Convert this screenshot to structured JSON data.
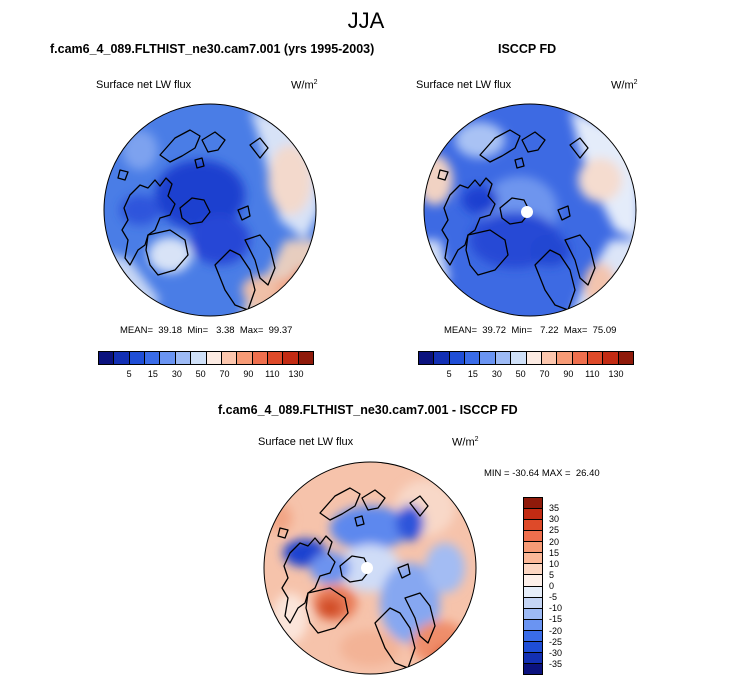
{
  "title": "JJA",
  "panels": {
    "model": {
      "title": "f.cam6_4_089.FLTHIST_ne30.cam7.001 (yrs 1995-2003)",
      "variable": "Surface net LW flux",
      "units_base": "W/m",
      "units_exp": "2",
      "stats": "MEAN=  39.18  Min=   3.38  Max=  99.37"
    },
    "obs": {
      "title": "ISCCP FD",
      "variable": "Surface net LW flux",
      "units_base": "W/m",
      "units_exp": "2",
      "stats": "MEAN=  39.72  Min=   7.22  Max=  75.09"
    },
    "diff": {
      "title": "f.cam6_4_089.FLTHIST_ne30.cam7.001 - ISCCP FD",
      "variable": "Surface net LW flux",
      "units_base": "W/m",
      "units_exp": "2",
      "stats": "MIN = -30.64 MAX =  26.40"
    }
  },
  "colorbars": {
    "main": {
      "labels": [
        "5",
        "15",
        "30",
        "50",
        "70",
        "90",
        "110",
        "130"
      ],
      "colors": [
        "#0b127e",
        "#1330b4",
        "#1f4ed6",
        "#3a6ce8",
        "#6a94f2",
        "#9dbaf5",
        "#cfe0f8",
        "#fcebe3",
        "#fcc6ad",
        "#f79b76",
        "#ef6f4d",
        "#de4a29",
        "#c22b13",
        "#8f1a0a"
      ]
    },
    "diff": {
      "labels": [
        "35",
        "30",
        "25",
        "20",
        "15",
        "10",
        "5",
        "0",
        "-5",
        "-10",
        "-15",
        "-20",
        "-25",
        "-30",
        "-35"
      ],
      "colors": [
        "#8f1a0a",
        "#c22b13",
        "#de4a29",
        "#ef6f4d",
        "#f79b76",
        "#fcb898",
        "#fcd6c2",
        "#fdf0ea",
        "#e6eefa",
        "#c4d5f5",
        "#9dbaf5",
        "#6a94f2",
        "#3a6ce8",
        "#1f4ed6",
        "#1330b4",
        "#0b127e"
      ]
    }
  }
}
